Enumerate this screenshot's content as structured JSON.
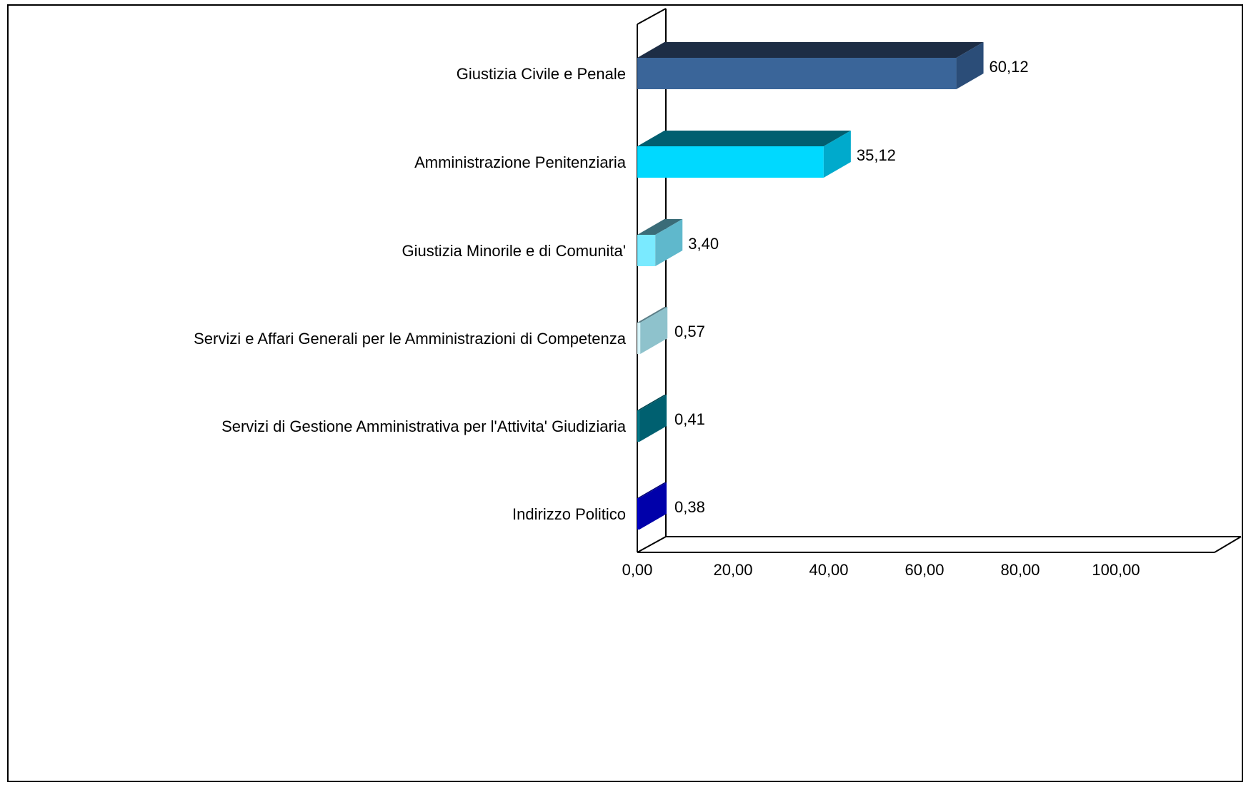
{
  "chart_data": {
    "type": "bar",
    "orientation": "horizontal",
    "three_d": true,
    "categories": [
      "Giustizia Civile e Penale",
      "Amministrazione Penitenziaria",
      "Giustizia Minorile e di Comunita'",
      "Servizi e Affari Generali per le Amministrazioni di Competenza",
      "Servizi di Gestione Amministrativa per l'Attivita' Giudiziaria",
      "Indirizzo Politico"
    ],
    "values": [
      60.12,
      35.12,
      3.4,
      0.57,
      0.41,
      0.38
    ],
    "value_labels": [
      "60,12",
      "35,12",
      "3,40",
      "0,57",
      "0,41",
      "0,38"
    ],
    "bar_colors": [
      {
        "front": "#3a6599",
        "side": "#2b4d78",
        "top": "#1d2d45"
      },
      {
        "front": "#00d9ff",
        "side": "#00aacc",
        "top": "#005f70"
      },
      {
        "front": "#7aeaff",
        "side": "#5fb8cc",
        "top": "#3a6c78"
      },
      {
        "front": "#d8f6fb",
        "side": "#8ec2cc",
        "top": "#5b7f88"
      },
      {
        "front": "#007a8a",
        "side": "#006070",
        "top": "#004550"
      },
      {
        "front": "#0000cc",
        "side": "#0000aa",
        "top": "#000070"
      }
    ],
    "x_ticks": [
      "0,00",
      "20,00",
      "40,00",
      "60,00",
      "80,00",
      "100,00"
    ],
    "xlim": [
      0,
      100
    ],
    "title": "",
    "xlabel": "",
    "ylabel": "",
    "grid": false,
    "legend": "none"
  }
}
